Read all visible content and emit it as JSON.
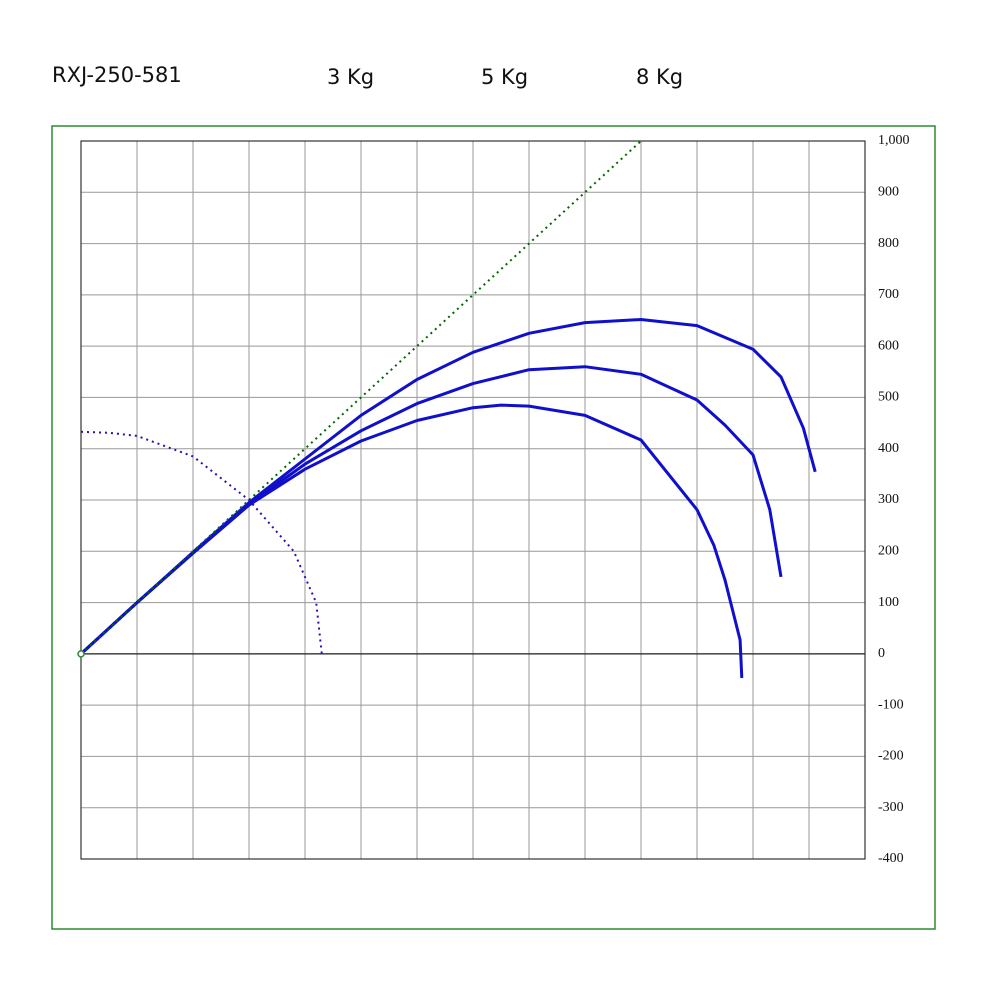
{
  "chart_data": {
    "type": "line",
    "title": "RXJ-250-581",
    "xlim": [
      0,
      1400
    ],
    "xticks": [
      0,
      100,
      200,
      300,
      400,
      500,
      600,
      700,
      800,
      900,
      1000,
      1100,
      1200,
      1300,
      1400
    ],
    "ylim": [
      -400,
      1000
    ],
    "yticks": [
      {
        "value": 1000,
        "label": "1,000"
      },
      900,
      800,
      700,
      600,
      500,
      400,
      300,
      200,
      100,
      0,
      -100,
      -200,
      -300,
      -400
    ],
    "grid": true,
    "series": [
      {
        "name": "3 Kg",
        "color": "#1010cc",
        "style": "solid",
        "x": [
          0,
          100,
          200,
          300,
          400,
          500,
          600,
          700,
          750,
          800,
          900,
          1000,
          1100,
          1130,
          1150,
          1177,
          1180
        ],
        "values": [
          0,
          100,
          196,
          290,
          360,
          415,
          455,
          480,
          485,
          483,
          465,
          417,
          281,
          212,
          144,
          27,
          -47
        ]
      },
      {
        "name": "5 Kg",
        "color": "#1010cc",
        "style": "solid",
        "x": [
          0,
          100,
          200,
          300,
          400,
          500,
          600,
          700,
          800,
          900,
          1000,
          1100,
          1150,
          1200,
          1230,
          1250
        ],
        "values": [
          0,
          100,
          197,
          292,
          370,
          435,
          488,
          527,
          554,
          560,
          545,
          495,
          446,
          388,
          281,
          150
        ]
      },
      {
        "name": "8 Kg",
        "color": "#1010cc",
        "style": "solid",
        "x": [
          0,
          100,
          200,
          300,
          400,
          500,
          600,
          700,
          800,
          900,
          1000,
          1100,
          1200,
          1250,
          1290,
          1311
        ],
        "values": [
          0,
          100,
          198,
          295,
          380,
          465,
          535,
          588,
          625,
          646,
          652,
          640,
          594,
          540,
          440,
          355
        ]
      },
      {
        "color": "#006600",
        "style": "dotted",
        "x": [
          0,
          1000
        ],
        "values": [
          0,
          1000
        ]
      },
      {
        "color": "#2a10b0",
        "style": "dotted",
        "x": [
          0,
          50,
          100,
          200,
          300,
          380,
          420,
          430
        ],
        "values": [
          433,
          431,
          425,
          385,
          300,
          200,
          100,
          0
        ]
      }
    ]
  }
}
